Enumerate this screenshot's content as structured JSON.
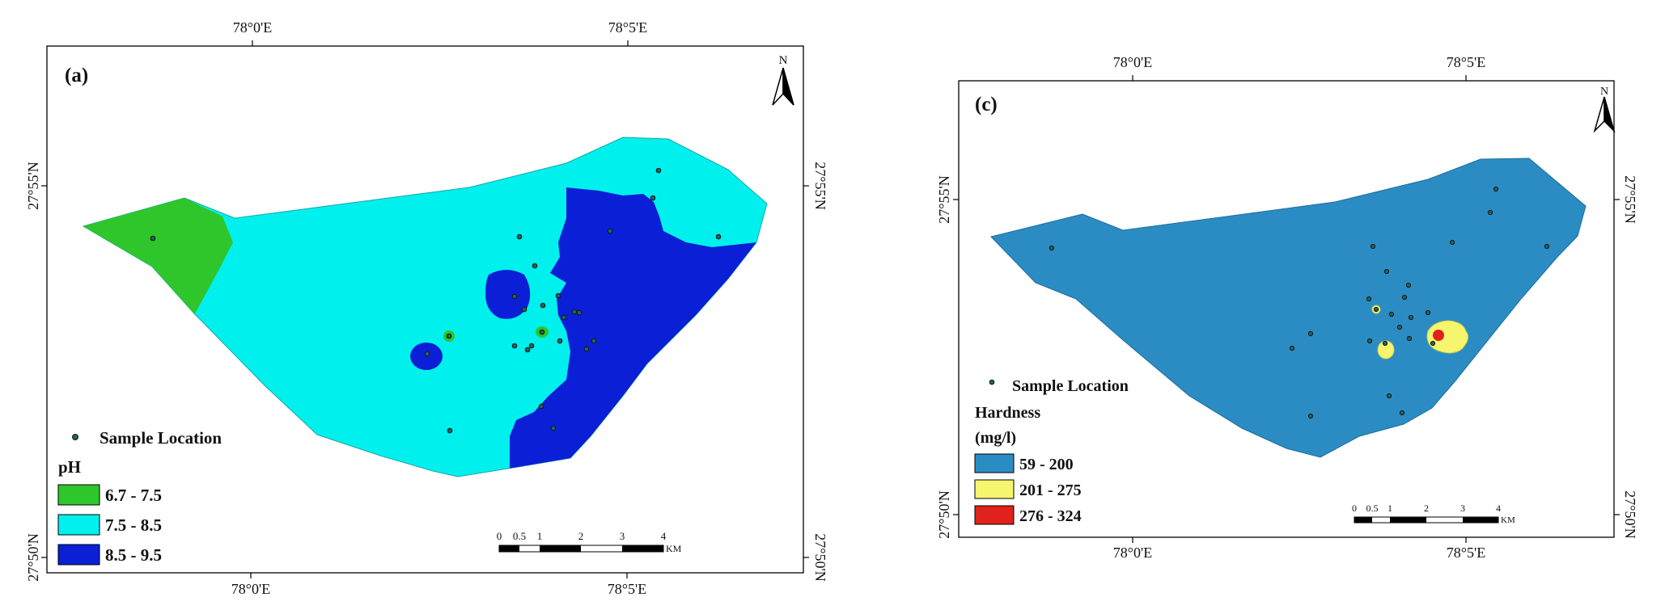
{
  "maps": [
    {
      "panel_label": "(a)",
      "coordinates": {
        "lon_left": "78°0'E",
        "lon_right": "78°5'E",
        "lat_top": "27°55'N",
        "lat_bottom": "27°50'N"
      },
      "north": "N",
      "sample_legend": "Sample Location",
      "legend_title": "pH",
      "legend_items": [
        {
          "label": "6.7 - 7.5",
          "color": "#2ec62a"
        },
        {
          "label": "7.5 - 8.5",
          "color": "#00f0ee"
        },
        {
          "label": "8.5 - 9.5",
          "color": "#0b1fd6"
        }
      ],
      "scale": {
        "ticks": [
          "0",
          "0.5",
          "1",
          "2",
          "3",
          "4"
        ],
        "unit": "KM"
      }
    },
    {
      "panel_label": "(c)",
      "coordinates": {
        "lon_left": "78°0'E",
        "lon_right": "78°5'E",
        "lat_top": "27°55'N",
        "lat_bottom": "27°50'N"
      },
      "north": "N",
      "sample_legend": "Sample Location",
      "legend_title": "Hardness",
      "legend_subtitle": "(mg/l)",
      "legend_items": [
        {
          "label": "59 - 200",
          "color": "#2b8cc4"
        },
        {
          "label": "201 - 275",
          "color": "#f6f56e"
        },
        {
          "label": "276 - 324",
          "color": "#e0211c"
        }
      ],
      "scale": {
        "ticks": [
          "0",
          "0.5",
          "1",
          "2",
          "3",
          "4"
        ],
        "unit": "KM"
      }
    }
  ]
}
